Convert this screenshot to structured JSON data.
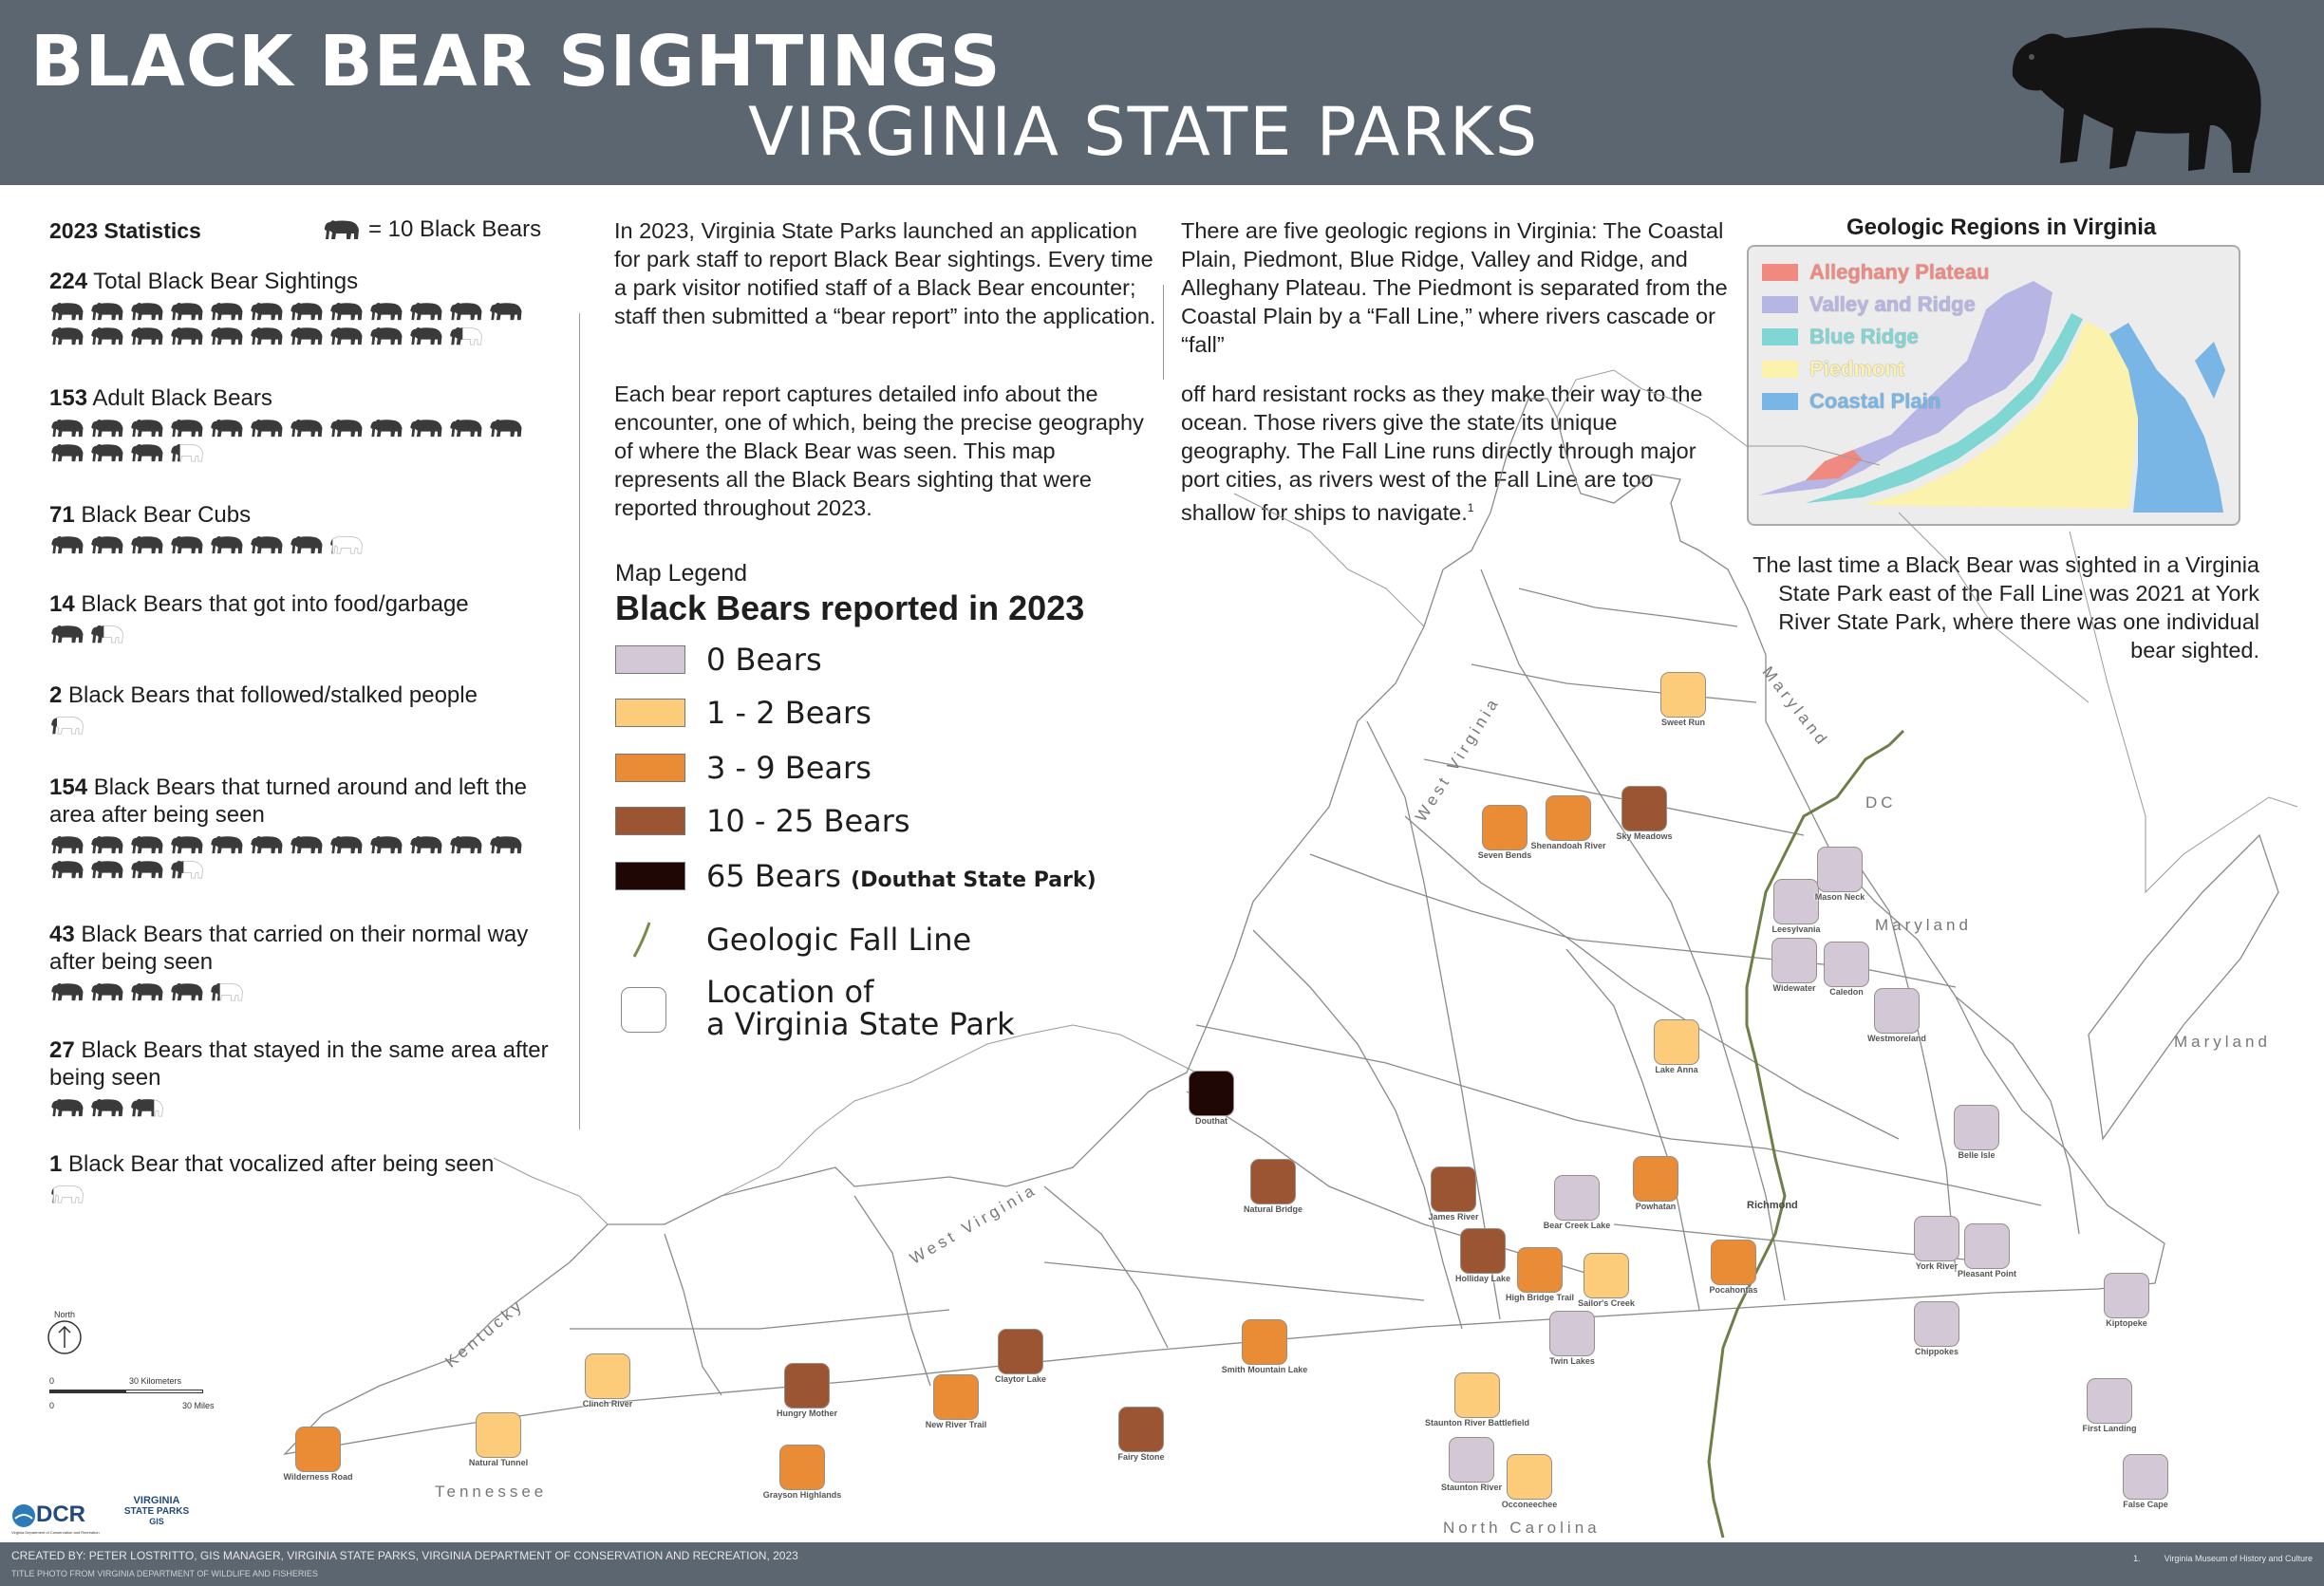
{
  "header": {
    "title": "BLACK BEAR SIGHTINGS",
    "subtitle": "VIRGINIA STATE PARKS"
  },
  "stats": {
    "heading": "2023 Statistics",
    "key_label": "= 10 Black Bears",
    "items": [
      {
        "num": "224",
        "text": " Total Black Bear Sightings",
        "bears": 22.4
      },
      {
        "num": "153",
        "text": " Adult Black Bears",
        "bears": 15.3
      },
      {
        "num": "71",
        "text": " Black Bear Cubs",
        "bears": 7.1
      },
      {
        "num": "14",
        "text": " Black Bears that got into food/garbage",
        "bears": 1.4
      },
      {
        "num": "2",
        "text": " Black Bears that followed/stalked people",
        "bears": 0.2
      },
      {
        "num": "154",
        "text": " Black Bears that turned around and left the area after being seen",
        "bears": 15.4
      },
      {
        "num": "43",
        "text": " Black Bears that carried on their normal way after being seen",
        "bears": 4.3
      },
      {
        "num": "27",
        "text": " Black Bears that stayed in the same area after being seen",
        "bears": 2.7
      },
      {
        "num": "1",
        "text": " Black Bear that vocalized after being seen",
        "bears": 0.1
      }
    ]
  },
  "intro": {
    "p1": "In 2023, Virginia State Parks launched an application for park staff to report Black Bear sightings. Every time a park visitor notified staff of a Black Bear encounter; staff then submitted a “bear report” into the application.",
    "p2": "Each bear report captures detailed info about the encounter, one of which, being the precise geography of where the Black Bear was seen. This map represents all the Black Bears sighting that were reported throughout 2023."
  },
  "geology_text": {
    "p1": "There are five geologic regions in Virginia: The Coastal Plain, Piedmont, Blue Ridge, Valley and Ridge, and Alleghany Plateau. The Piedmont is separated from the Coastal Plain by a “Fall Line,” where rivers cascade or “fall”",
    "p2": "off hard resistant rocks as they make their way to the ocean. Those rivers give the state its unique geography. The Fall Line runs directly through major port cities, as rivers west of the Fall Line are too shallow for ships to navigate.",
    "footnote_mark": "1"
  },
  "inset": {
    "title": "Geologic Regions in Virginia",
    "regions": [
      {
        "label": "Alleghany Plateau",
        "color": "#f08a80"
      },
      {
        "label": "Valley and Ridge",
        "color": "#b7b5e3"
      },
      {
        "label": "Blue Ridge",
        "color": "#7fd6d3"
      },
      {
        "label": "Piedmont",
        "color": "#fbf2ad"
      },
      {
        "label": "Coastal Plain",
        "color": "#79b6e6"
      }
    ]
  },
  "york_note": "The last time a Black Bear was sighted in a Virginia State Park east of the Fall Line was 2021 at York River State Park, where there was one individual bear sighted.",
  "legend": {
    "small_title": "Map Legend",
    "title": "Black Bears reported in 2023",
    "classes": [
      {
        "label": "0 Bears",
        "color": "#d3c9d6",
        "note": ""
      },
      {
        "label": "1 - 2 Bears",
        "color": "#fdcc7a",
        "note": ""
      },
      {
        "label": "3 - 9 Bears",
        "color": "#ea8b36",
        "note": ""
      },
      {
        "label": "10 - 25 Bears",
        "color": "#9c5532",
        "note": ""
      },
      {
        "label": "65 Bears",
        "color": "#1f0705",
        "note": "(Douthat State Park)"
      }
    ],
    "fall_line_label": "Geologic Fall Line",
    "park_label_1": "Location of",
    "park_label_2": "a Virginia State Park"
  },
  "map": {
    "parks": [
      {
        "name": "Sweet Run",
        "cls": 1
      },
      {
        "name": "Sky Meadows",
        "cls": 3
      },
      {
        "name": "Seven Bends",
        "cls": 2
      },
      {
        "name": "Shenandoah River",
        "cls": 2
      },
      {
        "name": "Leesylvania",
        "cls": 0
      },
      {
        "name": "Mason Neck",
        "cls": 0
      },
      {
        "name": "Widewater",
        "cls": 0
      },
      {
        "name": "Caledon",
        "cls": 0
      },
      {
        "name": "Westmoreland",
        "cls": 0
      },
      {
        "name": "Lake Anna",
        "cls": 1
      },
      {
        "name": "Douthat",
        "cls": 4
      },
      {
        "name": "Belle Isle",
        "cls": 0
      },
      {
        "name": "Natural Bridge",
        "cls": 3
      },
      {
        "name": "James River",
        "cls": 3
      },
      {
        "name": "Bear Creek Lake",
        "cls": 0
      },
      {
        "name": "Powhatan",
        "cls": 2
      },
      {
        "name": "Holliday Lake",
        "cls": 3
      },
      {
        "name": "High Bridge Trail",
        "cls": 2
      },
      {
        "name": "Sailor's Creek",
        "cls": 1
      },
      {
        "name": "Pocahontas",
        "cls": 2
      },
      {
        "name": "York River",
        "cls": 0
      },
      {
        "name": "Chippokes",
        "cls": 0
      },
      {
        "name": "Twin Lakes",
        "cls": 0
      },
      {
        "name": "Kiptopeke",
        "cls": 0
      },
      {
        "name": "Claytor Lake",
        "cls": 3
      },
      {
        "name": "Smith Mountain Lake",
        "cls": 2
      },
      {
        "name": "Hungry Mother",
        "cls": 3
      },
      {
        "name": "New River Trail",
        "cls": 2
      },
      {
        "name": "Clinch River",
        "cls": 1
      },
      {
        "name": "Natural Tunnel",
        "cls": 1
      },
      {
        "name": "Wilderness Road",
        "cls": 2
      },
      {
        "name": "Grayson Highlands",
        "cls": 2
      },
      {
        "name": "Fairy Stone",
        "cls": 3
      },
      {
        "name": "Staunton River Battlefield",
        "cls": 1
      },
      {
        "name": "Staunton River",
        "cls": 0
      },
      {
        "name": "Occoneechee",
        "cls": 1
      },
      {
        "name": "First Landing",
        "cls": 0
      },
      {
        "name": "False Cape",
        "cls": 0
      },
      {
        "name": "Pleasant Point",
        "cls": 0
      }
    ],
    "state_labels": [
      "West Virginia",
      "Maryland",
      "Maryland",
      "Maryland",
      "West Virginia",
      "Kentucky",
      "Tennessee",
      "North Carolina",
      "DC"
    ],
    "city_labels": [
      "Richmond"
    ],
    "north_label": "North",
    "scale_km": "30 Kilometers",
    "scale_mi": "30 Miles",
    "scale_zero": "0"
  },
  "logos": {
    "dcr": "DCR",
    "dcr_sub": "Virginia Department of Conservation and Recreation",
    "vsp1": "VIRGINIA",
    "vsp2": "STATE PARKS",
    "vsp3": "GIS"
  },
  "footer": {
    "credit": "CREATED BY: PETER LOSTRITTO, GIS MANAGER, VIRGINIA STATE PARKS, VIRGINIA DEPARTMENT OF CONSERVATION AND RECREATION, 2023",
    "photo": "TITLE PHOTO FROM VIRGINIA DEPARTMENT OF WILDLIFE AND FISHERIES",
    "source_num": "1.",
    "source": "Virginia Museum of History and Culture"
  }
}
